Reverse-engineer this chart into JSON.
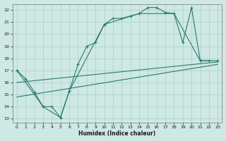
{
  "xlabel": "Humidex (Indice chaleur)",
  "bg_color": "#cee8e4",
  "grid_color": "#aacfca",
  "line_color": "#2a7a6a",
  "xlim": [
    -0.5,
    23.5
  ],
  "ylim": [
    12.7,
    22.5
  ],
  "xticks": [
    0,
    1,
    2,
    3,
    4,
    5,
    6,
    7,
    8,
    9,
    10,
    11,
    12,
    13,
    14,
    15,
    16,
    17,
    18,
    19,
    20,
    21,
    22,
    23
  ],
  "yticks": [
    13,
    14,
    15,
    16,
    17,
    18,
    19,
    20,
    21,
    22
  ],
  "line1_x": [
    0,
    1,
    2,
    3,
    4,
    5,
    6,
    7,
    8,
    9,
    10,
    11,
    12,
    13,
    14,
    15,
    16,
    17,
    18,
    19,
    20,
    21,
    22
  ],
  "line1_y": [
    17.0,
    16.3,
    15.2,
    14.0,
    14.0,
    13.1,
    15.3,
    17.5,
    19.0,
    19.3,
    20.8,
    21.3,
    21.3,
    21.5,
    21.7,
    22.2,
    22.2,
    21.8,
    21.7,
    19.3,
    22.2,
    17.8,
    17.8
  ],
  "line2_x": [
    0,
    3,
    5,
    6,
    10,
    14,
    18,
    21,
    23
  ],
  "line2_y": [
    17.0,
    14.0,
    13.1,
    15.3,
    20.8,
    21.7,
    21.7,
    17.8,
    17.8
  ],
  "line3_x": [
    0,
    23
  ],
  "line3_y": [
    16.0,
    17.7
  ],
  "line4_x": [
    0,
    23
  ],
  "line4_y": [
    14.8,
    17.5
  ]
}
